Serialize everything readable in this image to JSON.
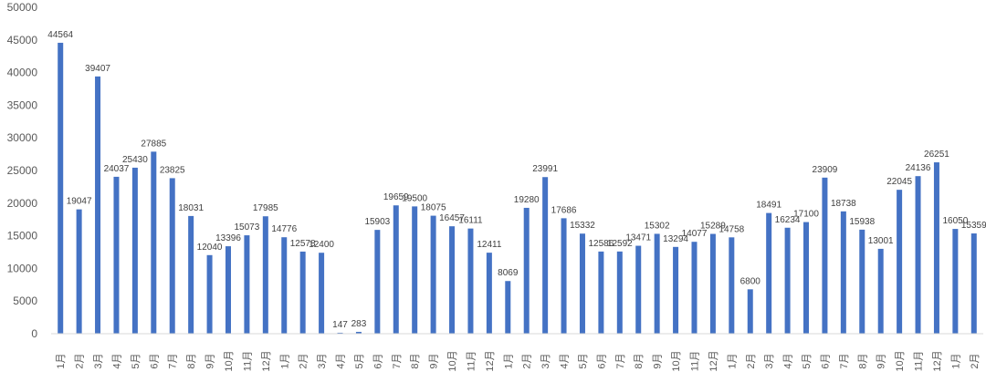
{
  "chart_data": {
    "type": "bar",
    "title": "",
    "xlabel": "",
    "ylabel": "",
    "ylim": [
      0,
      50000
    ],
    "yticks": [
      0,
      5000,
      10000,
      15000,
      20000,
      25000,
      30000,
      35000,
      40000,
      45000,
      50000
    ],
    "grid": false,
    "legend": "none",
    "bar_color": "#4472c4",
    "categories": [
      "1月",
      "2月",
      "3月",
      "4月",
      "5月",
      "6月",
      "7月",
      "8月",
      "9月",
      "10月",
      "11月",
      "12月",
      "1月",
      "2月",
      "3月",
      "4月",
      "5月",
      "6月",
      "7月",
      "8月",
      "9月",
      "10月",
      "11月",
      "12月",
      "1月",
      "2月",
      "3月",
      "4月",
      "5月",
      "6月",
      "7月",
      "8月",
      "9月",
      "10月",
      "11月",
      "12月",
      "1月",
      "2月",
      "3月",
      "4月",
      "5月",
      "6月",
      "7月",
      "8月",
      "9月",
      "10月",
      "11月",
      "12月",
      "1月",
      "2月"
    ],
    "values": [
      44564,
      19047,
      39407,
      24037,
      25430,
      27885,
      23825,
      18031,
      12040,
      13396,
      15073,
      17985,
      14776,
      12578,
      12400,
      147,
      283,
      15903,
      19659,
      19500,
      18075,
      16457,
      16111,
      12411,
      8069,
      19280,
      23991,
      17686,
      15332,
      12586,
      12592,
      13471,
      15302,
      13294,
      14077,
      15289,
      14758,
      6800,
      18491,
      16234,
      17100,
      23909,
      18738,
      15938,
      13001,
      22045,
      24136,
      26251,
      16050,
      15359
    ]
  }
}
